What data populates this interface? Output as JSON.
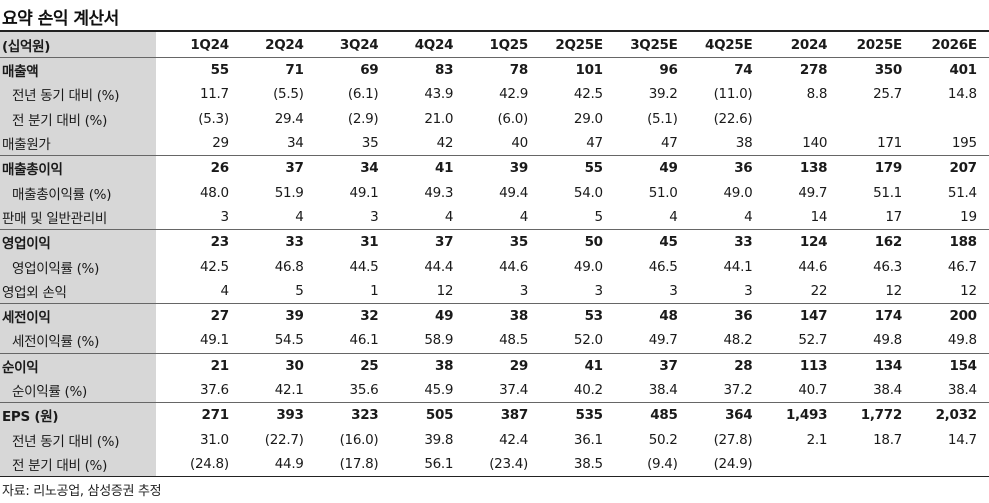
{
  "title": "요약 손익 계산서",
  "source": "자료: 리노공업, 삼성증권 추정",
  "columns": [
    "(십억원)",
    "1Q24",
    "2Q24",
    "3Q24",
    "4Q24",
    "1Q25",
    "2Q25E",
    "3Q25E",
    "4Q25E",
    "2024",
    "2025E",
    "2026E"
  ],
  "rows": [
    {
      "label": "매출액",
      "style": "major",
      "values": [
        "55",
        "71",
        "69",
        "83",
        "78",
        "101",
        "96",
        "74",
        "278",
        "350",
        "401"
      ]
    },
    {
      "label": "전년 동기 대비 (%)",
      "style": "sub",
      "values": [
        "11.7",
        "(5.5)",
        "(6.1)",
        "43.9",
        "42.9",
        "42.5",
        "39.2",
        "(11.0)",
        "8.8",
        "25.7",
        "14.8"
      ]
    },
    {
      "label": "전 분기 대비 (%)",
      "style": "sub",
      "values": [
        "(5.3)",
        "29.4",
        "(2.9)",
        "21.0",
        "(6.0)",
        "29.0",
        "(5.1)",
        "(22.6)",
        "",
        "",
        ""
      ]
    },
    {
      "label": "매출원가",
      "style": "plain",
      "values": [
        "29",
        "34",
        "35",
        "42",
        "40",
        "47",
        "47",
        "38",
        "140",
        "171",
        "195"
      ]
    },
    {
      "label": "매출총이익",
      "style": "major",
      "values": [
        "26",
        "37",
        "34",
        "41",
        "39",
        "55",
        "49",
        "36",
        "138",
        "179",
        "207"
      ]
    },
    {
      "label": "매출총이익률 (%)",
      "style": "sub",
      "values": [
        "48.0",
        "51.9",
        "49.1",
        "49.3",
        "49.4",
        "54.0",
        "51.0",
        "49.0",
        "49.7",
        "51.1",
        "51.4"
      ]
    },
    {
      "label": "판매 및 일반관리비",
      "style": "plain",
      "values": [
        "3",
        "4",
        "3",
        "4",
        "4",
        "5",
        "4",
        "4",
        "14",
        "17",
        "19"
      ]
    },
    {
      "label": "영업이익",
      "style": "major",
      "values": [
        "23",
        "33",
        "31",
        "37",
        "35",
        "50",
        "45",
        "33",
        "124",
        "162",
        "188"
      ]
    },
    {
      "label": "영업이익률 (%)",
      "style": "sub",
      "values": [
        "42.5",
        "46.8",
        "44.5",
        "44.4",
        "44.6",
        "49.0",
        "46.5",
        "44.1",
        "44.6",
        "46.3",
        "46.7"
      ]
    },
    {
      "label": "영업외 손익",
      "style": "plain",
      "values": [
        "4",
        "5",
        "1",
        "12",
        "3",
        "3",
        "3",
        "3",
        "22",
        "12",
        "12"
      ]
    },
    {
      "label": "세전이익",
      "style": "major",
      "values": [
        "27",
        "39",
        "32",
        "49",
        "38",
        "53",
        "48",
        "36",
        "147",
        "174",
        "200"
      ]
    },
    {
      "label": "세전이익률 (%)",
      "style": "sub",
      "values": [
        "49.1",
        "54.5",
        "46.1",
        "58.9",
        "48.5",
        "52.0",
        "49.7",
        "48.2",
        "52.7",
        "49.8",
        "49.8"
      ]
    },
    {
      "label": "순이익",
      "style": "major",
      "values": [
        "21",
        "30",
        "25",
        "38",
        "29",
        "41",
        "37",
        "28",
        "113",
        "134",
        "154"
      ]
    },
    {
      "label": "순이익률 (%)",
      "style": "sub",
      "values": [
        "37.6",
        "42.1",
        "35.6",
        "45.9",
        "37.4",
        "40.2",
        "38.4",
        "37.2",
        "40.7",
        "38.4",
        "38.4"
      ]
    },
    {
      "label": "EPS (원)",
      "style": "major",
      "values": [
        "271",
        "393",
        "323",
        "505",
        "387",
        "535",
        "485",
        "364",
        "1,493",
        "1,772",
        "2,032"
      ]
    },
    {
      "label": "전년 동기 대비 (%)",
      "style": "sub",
      "values": [
        "31.0",
        "(22.7)",
        "(16.0)",
        "39.8",
        "42.4",
        "36.1",
        "50.2",
        "(27.8)",
        "2.1",
        "18.7",
        "14.7"
      ]
    },
    {
      "label": "전 분기 대비 (%)",
      "style": "sub",
      "values": [
        "(24.8)",
        "44.9",
        "(17.8)",
        "56.1",
        "(23.4)",
        "38.5",
        "(9.4)",
        "(24.9)",
        "",
        "",
        ""
      ]
    }
  ]
}
